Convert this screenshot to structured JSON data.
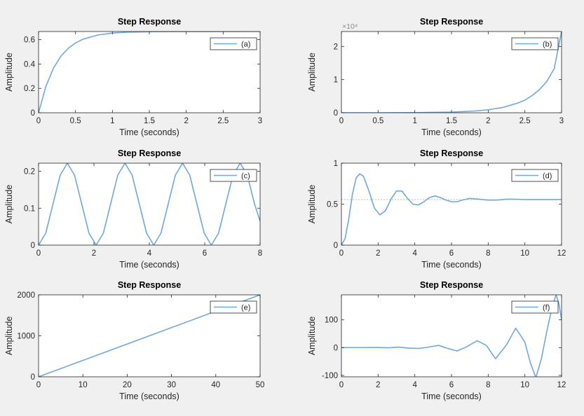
{
  "colors": {
    "background": "#f0f0f0",
    "axes_background": "#ffffff",
    "axes_frame": "#262626",
    "line": "#6fa8dc",
    "text": "#262626",
    "reference_line": "#bdbdbd"
  },
  "chart_data": [
    {
      "type": "line",
      "title": "Step Response",
      "xlabel": "Time (seconds)",
      "ylabel": "Amplitude",
      "legend": "(a)",
      "legend_position": "top-right",
      "xlim": [
        0,
        3
      ],
      "ylim": [
        0,
        0.6667
      ],
      "xticks": [
        "0",
        "0.5",
        "1",
        "1.5",
        "2",
        "2.5",
        "3"
      ],
      "yticks": [
        "0",
        "0.2",
        "0.4",
        "0.6"
      ],
      "exponent_label": "",
      "grid": false,
      "series": [
        {
          "x": [
            0,
            0.1,
            0.2,
            0.3,
            0.4,
            0.5,
            0.6,
            0.8,
            1.0,
            1.2,
            1.5,
            2.0,
            2.5,
            3.0
          ],
          "values": [
            0,
            0.217,
            0.364,
            0.462,
            0.528,
            0.573,
            0.603,
            0.638,
            0.654,
            0.661,
            0.665,
            0.6665,
            0.6666,
            0.6667
          ]
        }
      ]
    },
    {
      "type": "line",
      "title": "Step Response",
      "xlabel": "Time (seconds)",
      "ylabel": "Amplitude",
      "legend": "(b)",
      "legend_position": "top-right",
      "xlim": [
        0,
        3
      ],
      "ylim": [
        0,
        2.45
      ],
      "xticks": [
        "0",
        "0.5",
        "1",
        "1.5",
        "2",
        "2.5",
        "3"
      ],
      "yticks": [
        "0",
        "1",
        "2"
      ],
      "exponent_label": "×10⁴",
      "grid": false,
      "series": [
        {
          "x": [
            0,
            0.5,
            1.0,
            1.5,
            1.8,
            2.0,
            2.2,
            2.4,
            2.5,
            2.6,
            2.7,
            2.8,
            2.9,
            3.0
          ],
          "values": [
            0,
            0.0003,
            0.003,
            0.02,
            0.05,
            0.09,
            0.16,
            0.29,
            0.38,
            0.52,
            0.7,
            0.95,
            1.33,
            2.45
          ]
        }
      ]
    },
    {
      "type": "line",
      "title": "Step Response",
      "xlabel": "Time (seconds)",
      "ylabel": "Amplitude",
      "legend": "(c)",
      "legend_position": "top-right",
      "xlim": [
        0,
        8
      ],
      "ylim": [
        0,
        0.222
      ],
      "xticks": [
        "0",
        "2",
        "4",
        "6",
        "8"
      ],
      "yticks": [
        "0",
        "0.1",
        "0.2"
      ],
      "exponent_label": "",
      "grid": false,
      "series": [
        {
          "x": [
            0,
            0.26,
            0.52,
            0.78,
            1.04,
            1.3,
            1.56,
            1.82,
            2.08,
            2.34,
            2.6,
            2.86,
            3.12,
            3.38,
            3.64,
            3.9,
            4.16,
            4.42,
            4.68,
            4.94,
            5.2,
            5.46,
            5.72,
            5.98,
            6.24,
            6.5,
            6.76,
            7.02,
            7.28,
            7.54,
            7.8,
            8.0
          ],
          "values": [
            0,
            0.0325,
            0.111,
            0.1895,
            0.222,
            0.1895,
            0.111,
            0.0325,
            0,
            0.0325,
            0.111,
            0.1895,
            0.222,
            0.1895,
            0.111,
            0.0325,
            0,
            0.0325,
            0.111,
            0.1895,
            0.222,
            0.1895,
            0.111,
            0.0325,
            0,
            0.0325,
            0.111,
            0.1895,
            0.222,
            0.1895,
            0.111,
            0.065
          ]
        }
      ]
    },
    {
      "type": "line",
      "title": "Step Response",
      "xlabel": "Time (seconds)",
      "ylabel": "Amplitude",
      "legend": "(d)",
      "legend_position": "top-right",
      "xlim": [
        0,
        12
      ],
      "ylim": [
        0,
        1
      ],
      "xticks": [
        "0",
        "2",
        "4",
        "6",
        "8",
        "10",
        "12"
      ],
      "yticks": [
        "0",
        "0.5",
        "1"
      ],
      "exponent_label": "",
      "grid": false,
      "steady_state": 0.556,
      "series": [
        {
          "x": [
            0,
            0.2,
            0.4,
            0.6,
            0.8,
            1.0,
            1.2,
            1.5,
            1.8,
            2.1,
            2.4,
            2.7,
            3.0,
            3.3,
            3.6,
            3.9,
            4.2,
            4.5,
            4.8,
            5.1,
            5.4,
            5.7,
            6.0,
            6.3,
            6.6,
            7.0,
            7.5,
            8.0,
            8.5,
            9.0,
            9.5,
            10.0,
            10.5,
            11.0,
            11.5,
            12.0
          ],
          "values": [
            0,
            0.08,
            0.32,
            0.62,
            0.82,
            0.87,
            0.84,
            0.66,
            0.45,
            0.37,
            0.42,
            0.56,
            0.66,
            0.66,
            0.57,
            0.5,
            0.49,
            0.53,
            0.58,
            0.6,
            0.58,
            0.55,
            0.53,
            0.53,
            0.55,
            0.57,
            0.56,
            0.55,
            0.55,
            0.56,
            0.56,
            0.556,
            0.556,
            0.556,
            0.556,
            0.556
          ]
        }
      ]
    },
    {
      "type": "line",
      "title": "Step Response",
      "xlabel": "Time (seconds)",
      "ylabel": "Amplitude",
      "legend": "(e)",
      "legend_position": "top-right",
      "xlim": [
        0,
        50
      ],
      "ylim": [
        0,
        2000
      ],
      "xticks": [
        "0",
        "10",
        "20",
        "30",
        "40",
        "50"
      ],
      "yticks": [
        "0",
        "1000",
        "2000"
      ],
      "exponent_label": "",
      "grid": false,
      "series": [
        {
          "x": [
            0,
            10,
            20,
            30,
            40,
            50
          ],
          "values": [
            0,
            400,
            800,
            1200,
            1600,
            2000
          ]
        }
      ]
    },
    {
      "type": "line",
      "title": "Step Response",
      "xlabel": "Time (seconds)",
      "ylabel": "Amplitude",
      "legend": "(f)",
      "legend_position": "top-right",
      "xlim": [
        0,
        12
      ],
      "ylim": [
        -105,
        190
      ],
      "xticks": [
        "0",
        "2",
        "4",
        "6",
        "8",
        "10",
        "12"
      ],
      "yticks": [
        "-100",
        "0",
        "100"
      ],
      "exponent_label": "",
      "grid": false,
      "series": [
        {
          "x": [
            0,
            1.0,
            2.0,
            2.6,
            3.1,
            3.6,
            4.2,
            4.7,
            5.3,
            5.8,
            6.3,
            6.8,
            7.4,
            7.9,
            8.4,
            9.0,
            9.5,
            10.0,
            10.3,
            10.6,
            10.9,
            11.2,
            11.5,
            11.7,
            11.85,
            12.0
          ],
          "values": [
            0,
            0.3,
            0.5,
            -0.5,
            2.0,
            -1.5,
            -3.0,
            1.5,
            8.0,
            -3.0,
            -12.0,
            2.0,
            25.0,
            8.0,
            -40.0,
            10.0,
            70.0,
            20.0,
            -55.0,
            -108.0,
            -40.0,
            60.0,
            150.0,
            190.0,
            160.0,
            100.0
          ]
        }
      ]
    }
  ]
}
